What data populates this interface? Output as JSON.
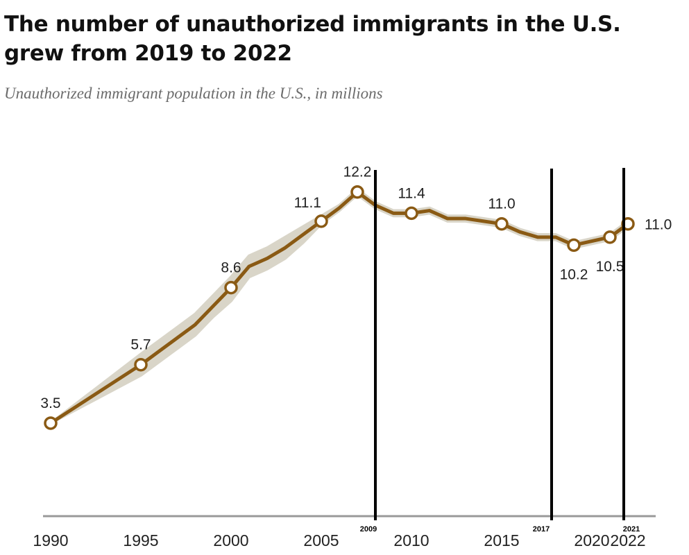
{
  "chart_data": {
    "type": "line",
    "title": "The number of unauthorized immigrants in the U.S. grew from 2019 to 2022",
    "subtitle": "Unauthorized immigrant population in the U.S., in millions",
    "xlabel": "",
    "ylabel": "",
    "ylim": [
      0,
      13
    ],
    "xlim": [
      1990,
      2022
    ],
    "grid": false,
    "colors": {
      "line": "#8a5a14",
      "band": "#d9d5c8",
      "axis": "#999999",
      "annotation": "#000000"
    },
    "x_ticks": [
      1990,
      1995,
      2000,
      2005,
      2010,
      2015,
      2020,
      2022
    ],
    "series": [
      {
        "x": [
          1990,
          1995,
          1996,
          1997,
          1998,
          1999,
          2000,
          2001,
          2002,
          2003,
          2004,
          2005,
          2006,
          2007,
          2008,
          2009,
          2010,
          2011,
          2012,
          2013,
          2014,
          2015,
          2016,
          2017,
          2018,
          2019,
          2021,
          2022
        ],
        "values": [
          3.5,
          5.7,
          6.2,
          6.7,
          7.2,
          7.9,
          8.6,
          9.4,
          9.7,
          10.1,
          10.6,
          11.1,
          11.6,
          12.2,
          11.7,
          11.4,
          11.4,
          11.5,
          11.2,
          11.2,
          11.1,
          11.0,
          10.7,
          10.5,
          10.5,
          10.2,
          10.5,
          11.0
        ],
        "range_lower": [
          3.5,
          5.3,
          5.8,
          6.3,
          6.8,
          7.5,
          8.1,
          9.0,
          9.3,
          9.7,
          10.3,
          11.0,
          11.5,
          12.1,
          11.6,
          11.3,
          11.3,
          11.4,
          11.1,
          11.1,
          11.0,
          10.9,
          10.6,
          10.4,
          10.4,
          10.1,
          10.4,
          10.9
        ],
        "range_upper": [
          3.5,
          6.1,
          6.6,
          7.1,
          7.6,
          8.3,
          9.0,
          9.8,
          10.1,
          10.5,
          10.9,
          11.3,
          11.7,
          12.3,
          11.8,
          11.5,
          11.5,
          11.6,
          11.3,
          11.3,
          11.2,
          11.1,
          10.8,
          10.6,
          10.6,
          10.3,
          10.6,
          11.1
        ]
      }
    ],
    "markers": [
      {
        "year": 1990,
        "value": 3.5,
        "label": "3.5",
        "pos": "above"
      },
      {
        "year": 1995,
        "value": 5.7,
        "label": "5.7",
        "pos": "above"
      },
      {
        "year": 2000,
        "value": 8.6,
        "label": "8.6",
        "pos": "above"
      },
      {
        "year": 2005,
        "value": 11.1,
        "label": "11.1",
        "pos": "above"
      },
      {
        "year": 2007,
        "value": 12.2,
        "label": "12.2",
        "pos": "above"
      },
      {
        "year": 2010,
        "value": 11.4,
        "label": "11.4",
        "pos": "above"
      },
      {
        "year": 2015,
        "value": 11.0,
        "label": "11.0",
        "pos": "above"
      },
      {
        "year": 2019,
        "value": 10.2,
        "label": "10.2",
        "pos": "below"
      },
      {
        "year": 2021,
        "value": 10.5,
        "label": "10.5",
        "pos": "below"
      },
      {
        "year": 2022,
        "value": 11.0,
        "label": "11.0",
        "pos": "right"
      }
    ],
    "annotation_lines": [
      {
        "label": "2009"
      },
      {
        "label": "2017"
      },
      {
        "label": "2021"
      }
    ]
  }
}
